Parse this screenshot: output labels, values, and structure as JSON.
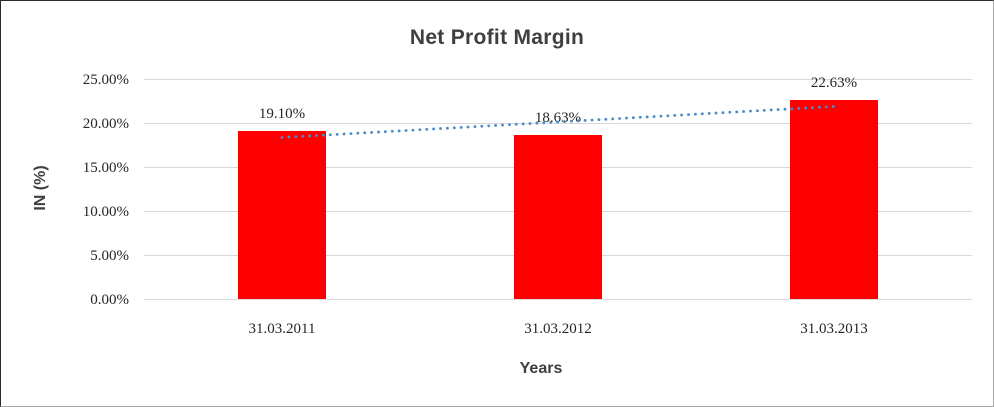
{
  "chart_data": {
    "type": "bar",
    "title": "Net Profit Margin",
    "categories": [
      "31.03.2011",
      "31.03.2012",
      "31.03.2013"
    ],
    "values": [
      19.1,
      18.63,
      22.63
    ],
    "data_labels": [
      "19.10%",
      "18.63%",
      "22.63%"
    ],
    "xlabel": "Years",
    "ylabel": "IN (%)",
    "ylim": [
      0,
      25
    ],
    "yticks": [
      "25.00%",
      "20.00%",
      "15.00%",
      "10.00%",
      "5.00%",
      "0.00%"
    ],
    "grid": true,
    "legend": "none",
    "trendline": {
      "type": "linear",
      "style": "dotted"
    },
    "colors": {
      "bar": "#FF0000",
      "trendline": "#4F8BC9",
      "gridline": "#D9D9D9",
      "title_text": "#3F3F3F",
      "tick_text": "#262626",
      "background": "#FFFFFF"
    }
  }
}
